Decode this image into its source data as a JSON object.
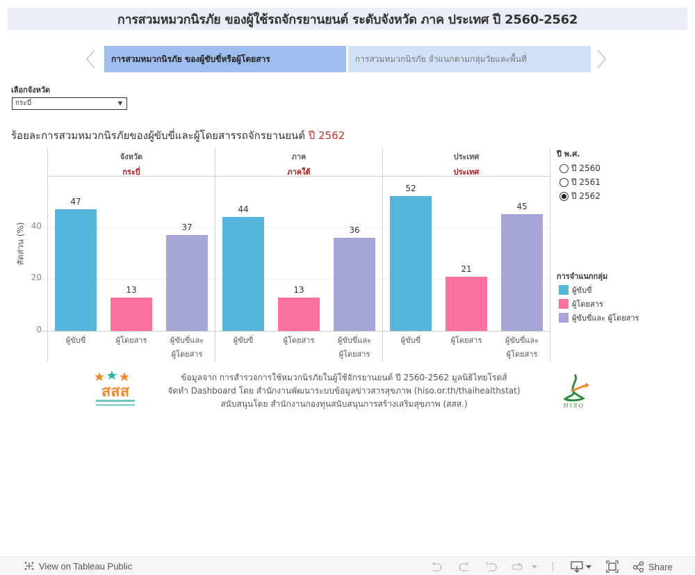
{
  "header": {
    "title": "การสวมหมวกนิรภัย ของผู้ใช้รถจักรยานยนต์ ระดับจังหวัด ภาค ประเทศ ปี 2560-2562"
  },
  "nav": {
    "prev_icon": "chevron-left-icon",
    "next_icon": "chevron-right-icon",
    "tabs": [
      {
        "label": "การสวมหมวกนิรภัย ของผู้ขับขี่หรือผู้โดยสาร",
        "active": true
      },
      {
        "label": "การสวมหมวกนิรภัย จำแนกตามกลุ่มวัยและพื้นที่",
        "active": false
      }
    ]
  },
  "filter": {
    "label": "เลือกจังหวัด",
    "selected": "กระบี่"
  },
  "chart_title": {
    "text": "ร้อยละการสวมหมวกนิรภัยของผู้ขับขี่และผู้โดยสารรถจักรยานยนต์",
    "year": "ปี 2562"
  },
  "year_filter": {
    "title": "ปี พ.ศ.",
    "options": [
      {
        "label": "ปี 2560",
        "selected": false
      },
      {
        "label": "ปี 2561",
        "selected": false
      },
      {
        "label": "ปี 2562",
        "selected": true
      }
    ]
  },
  "legend": {
    "title": "การจำแนกกลุ่ม",
    "items": [
      {
        "label": "ผู้ขับขี่",
        "color": "#55b5da"
      },
      {
        "label": "ผู้โดยสาร",
        "color": "#fb729e"
      },
      {
        "label": "ผู้ขับขี่และ ผู้โดยสาร",
        "color": "#a5a5d6"
      }
    ]
  },
  "chart_data": {
    "type": "bar",
    "title": "ร้อยละการสวมหมวกนิรภัยของผู้ขับขี่และผู้โดยสารรถจักรยานยนต์ ปี 2562",
    "xlabel": "",
    "ylabel": "สัดส่วน (%)",
    "ylim": [
      0,
      60
    ],
    "yticks": [
      0,
      20,
      40
    ],
    "grid": true,
    "legend_position": "right",
    "categories": [
      "ผู้ขับขี่",
      "ผู้โดยสาร",
      "ผู้ขับขี่และ ผู้โดยสาร"
    ],
    "category_label_lines": [
      [
        "ผู้ขับขี่"
      ],
      [
        "ผู้โดยสาร"
      ],
      [
        "ผู้ขับขี่และ",
        "ผู้โดยสาร"
      ]
    ],
    "colors": [
      "#55b5da",
      "#fb729e",
      "#a5a5d6"
    ],
    "panels": [
      {
        "level": "จังหวัด",
        "name": "กระบี่",
        "values": [
          47,
          13,
          37
        ]
      },
      {
        "level": "ภาค",
        "name": "ภาคใต้",
        "values": [
          44,
          13,
          36
        ]
      },
      {
        "level": "ประเทศ",
        "name": "ประเทศ",
        "values": [
          52,
          21,
          45
        ]
      }
    ]
  },
  "footer": {
    "lines": [
      "ข้อมูลจาก การสำรวจการใช้หมวกนิรภัยในผู้ใช้จักรยานยนต์ ปี 2560-2562 มูลนิธิไทยโรดส์",
      "จัดทำ Dashboard โดย สำนักงานพัฒนาระบบข้อมูลข่าวสารสุขภาพ (hiso.or.th/thaihealthstat)",
      "สนับสนุนโดย สำนักงานกองทุนสนับสนุนการสร้างเสริมสุขภาพ (สสส.)"
    ],
    "logo_left": "สสส",
    "logo_right": "HISO"
  },
  "toolbar": {
    "view_link": "View on Tableau Public",
    "share": "Share"
  }
}
